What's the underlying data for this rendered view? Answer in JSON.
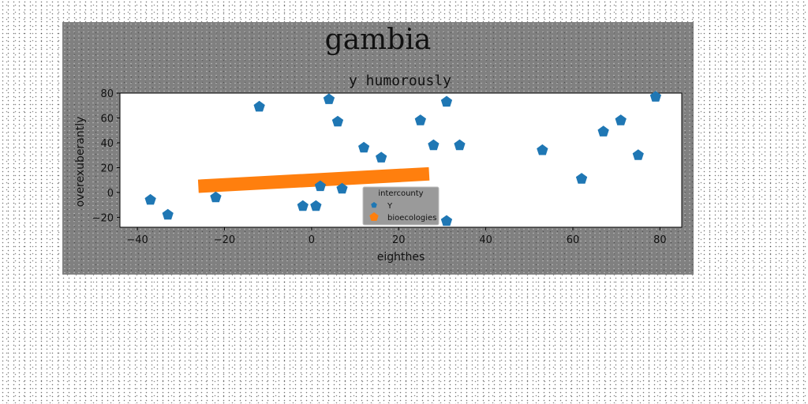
{
  "figure_title": "gambia",
  "chart_data": {
    "type": "scatter",
    "title": "y humorously",
    "xlabel": "eighthes",
    "ylabel": "overexuberantly",
    "xlim": [
      -44,
      85
    ],
    "ylim": [
      -28,
      80
    ],
    "xticks": [
      -40,
      -20,
      0,
      20,
      40,
      60,
      80
    ],
    "yticks": [
      -20,
      0,
      20,
      40,
      60,
      80
    ],
    "grid": false,
    "legend": {
      "title": "intercounty",
      "placement": "lower-center"
    },
    "series": [
      {
        "name": "Y",
        "type": "scatter",
        "marker": "pentagon",
        "color": "#1f77b4",
        "points": [
          [
            -37,
            -6
          ],
          [
            -33,
            -18
          ],
          [
            -22,
            -4
          ],
          [
            -12,
            69
          ],
          [
            -2,
            -11
          ],
          [
            1,
            -11
          ],
          [
            2,
            5
          ],
          [
            4,
            75
          ],
          [
            6,
            57
          ],
          [
            7,
            3
          ],
          [
            12,
            36
          ],
          [
            16,
            28
          ],
          [
            25,
            58
          ],
          [
            28,
            38
          ],
          [
            31,
            73
          ],
          [
            31,
            -23
          ],
          [
            34,
            38
          ],
          [
            53,
            34
          ],
          [
            62,
            11
          ],
          [
            67,
            49
          ],
          [
            71,
            58
          ],
          [
            75,
            30
          ],
          [
            79,
            77
          ]
        ]
      },
      {
        "name": "bioecologies",
        "type": "line",
        "marker": "pentagon",
        "color": "#ff7f0e",
        "points": [
          [
            -26,
            5
          ],
          [
            27,
            15
          ]
        ]
      }
    ]
  }
}
